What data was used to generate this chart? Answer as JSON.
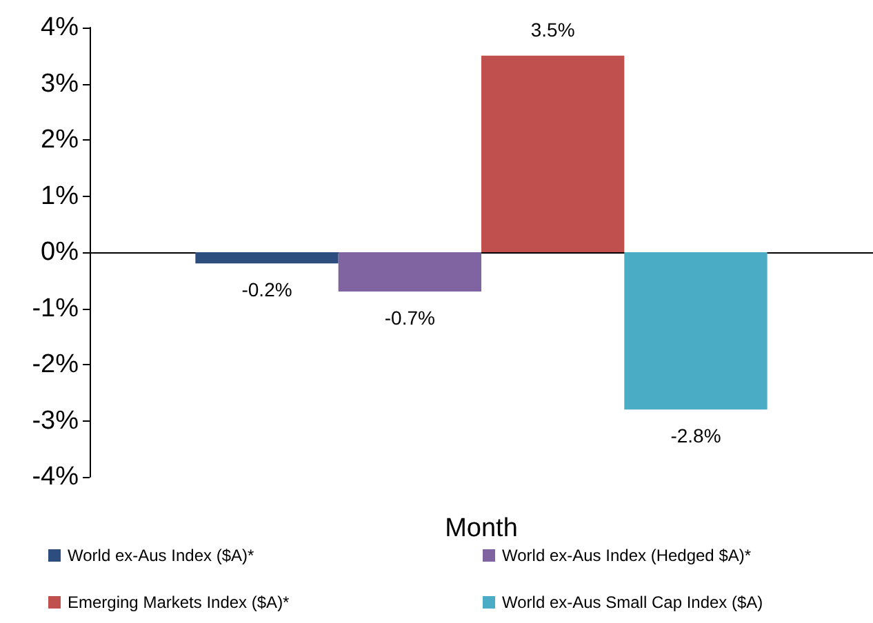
{
  "chart_data": {
    "type": "bar",
    "xlabel": "Month",
    "categories": [
      null
    ],
    "series": [
      {
        "name": "World ex-Aus Index ($A)*",
        "color": "#2c4d7e",
        "values": [
          -0.2
        ],
        "value_labels": [
          "-0.2%"
        ]
      },
      {
        "name": "World ex-Aus Index (Hedged $A)*",
        "color": "#8064a2",
        "values": [
          -0.7
        ],
        "value_labels": [
          "-0.7%"
        ]
      },
      {
        "name": "Emerging Markets Index ($A)*",
        "color": "#c0504d",
        "values": [
          3.5
        ],
        "value_labels": [
          "3.5%"
        ]
      },
      {
        "name": "World ex-Aus Small Cap Index ($A)",
        "color": "#4bacc6",
        "values": [
          -2.8
        ],
        "value_labels": [
          "-2.8%"
        ]
      }
    ],
    "ylim": [
      -4,
      4
    ],
    "yticks": [
      {
        "value": -4,
        "label": "-4%"
      },
      {
        "value": -3,
        "label": "-3%"
      },
      {
        "value": -2,
        "label": "-2%"
      },
      {
        "value": -1,
        "label": "-1%"
      },
      {
        "value": 0,
        "label": "0%"
      },
      {
        "value": 1,
        "label": "1%"
      },
      {
        "value": 2,
        "label": "2%"
      },
      {
        "value": 3,
        "label": "3%"
      },
      {
        "value": 4,
        "label": "4%"
      }
    ],
    "legend": "bottom"
  }
}
